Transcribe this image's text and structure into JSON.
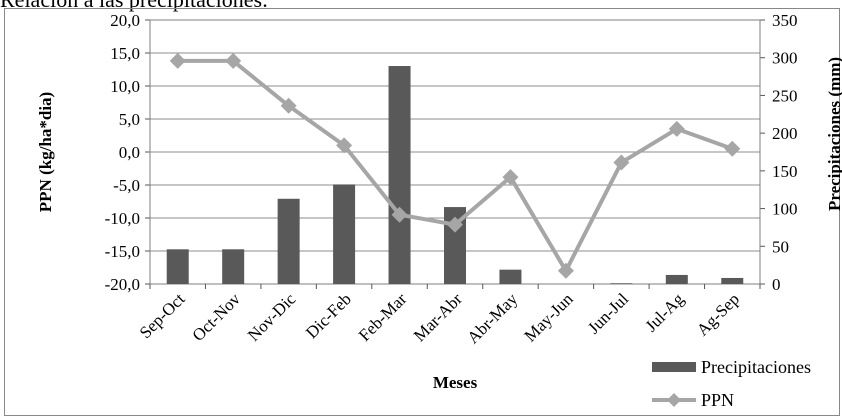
{
  "caption": "Relación a las precipitaciones:",
  "chart_data": {
    "type": "bar+line",
    "categories": [
      "Sep-Oct",
      "Oct-Nov",
      "Nov-Dic",
      "Dic-Feb",
      "Feb-Mar",
      "Mar-Abr",
      "Abr-May",
      "May-Jun",
      "Jun-Jul",
      "Jul-Ag",
      "Ag-Sep"
    ],
    "series": [
      {
        "name": "Precipitaciones",
        "kind": "bar",
        "axis": "right",
        "color": "#595959",
        "values": [
          46,
          46,
          113,
          132,
          289,
          102,
          19,
          0,
          1,
          12,
          8
        ]
      },
      {
        "name": "PPN",
        "kind": "line",
        "axis": "left",
        "color": "#a6a6a6",
        "values": [
          13.8,
          13.8,
          7.0,
          1.0,
          -9.5,
          -11.0,
          -3.8,
          -18.0,
          -1.6,
          3.5,
          0.5
        ]
      }
    ],
    "xlabel": "Meses",
    "ylabel": "PPN (kg/ha*dia)",
    "y2label": "Precipitaciones (mm)",
    "ylim": [
      -20,
      20
    ],
    "y2lim": [
      0,
      350
    ],
    "yticks": [
      "-20,0",
      "-15,0",
      "-10,0",
      "-5,0",
      "0,0",
      "5,0",
      "10,0",
      "15,0",
      "20,0"
    ],
    "y2ticks": [
      "0",
      "50",
      "100",
      "150",
      "200",
      "250",
      "300",
      "350"
    ],
    "grid": true,
    "legend": "bottom-right"
  }
}
